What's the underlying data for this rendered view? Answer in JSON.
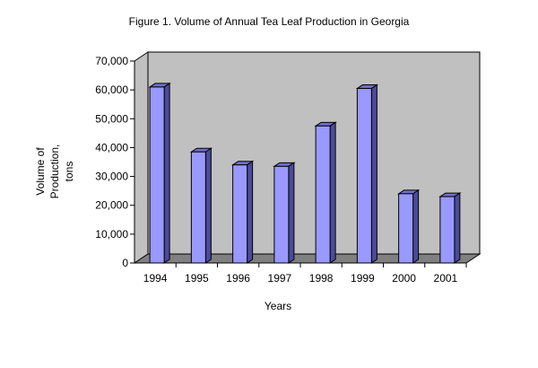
{
  "chart_data": {
    "type": "bar",
    "title": "Figure 1. Volume of Annual Tea Leaf Production in Georgia",
    "xlabel": "Years",
    "ylabel_lines": [
      "Volume of",
      "Production,",
      "tons"
    ],
    "categories": [
      "1994",
      "1995",
      "1996",
      "1997",
      "1998",
      "1999",
      "2000",
      "2001"
    ],
    "values": [
      61000,
      38500,
      34000,
      33500,
      47500,
      60500,
      24000,
      23000
    ],
    "ylim": [
      0,
      70000
    ],
    "yticks": [
      0,
      10000,
      20000,
      30000,
      40000,
      50000,
      60000,
      70000
    ],
    "ytick_labels": [
      "0",
      "10,000",
      "20,000",
      "30,000",
      "40,000",
      "50,000",
      "60,000",
      "70,000"
    ],
    "grid": false,
    "legend": false,
    "style": "3d-column",
    "colors": {
      "bar_front": "#9999ff",
      "bar_side": "#4b4b9a",
      "bar_top": "#7070c8",
      "wall": "#c0c0c0",
      "floor": "#808080",
      "outline": "#000000"
    }
  }
}
